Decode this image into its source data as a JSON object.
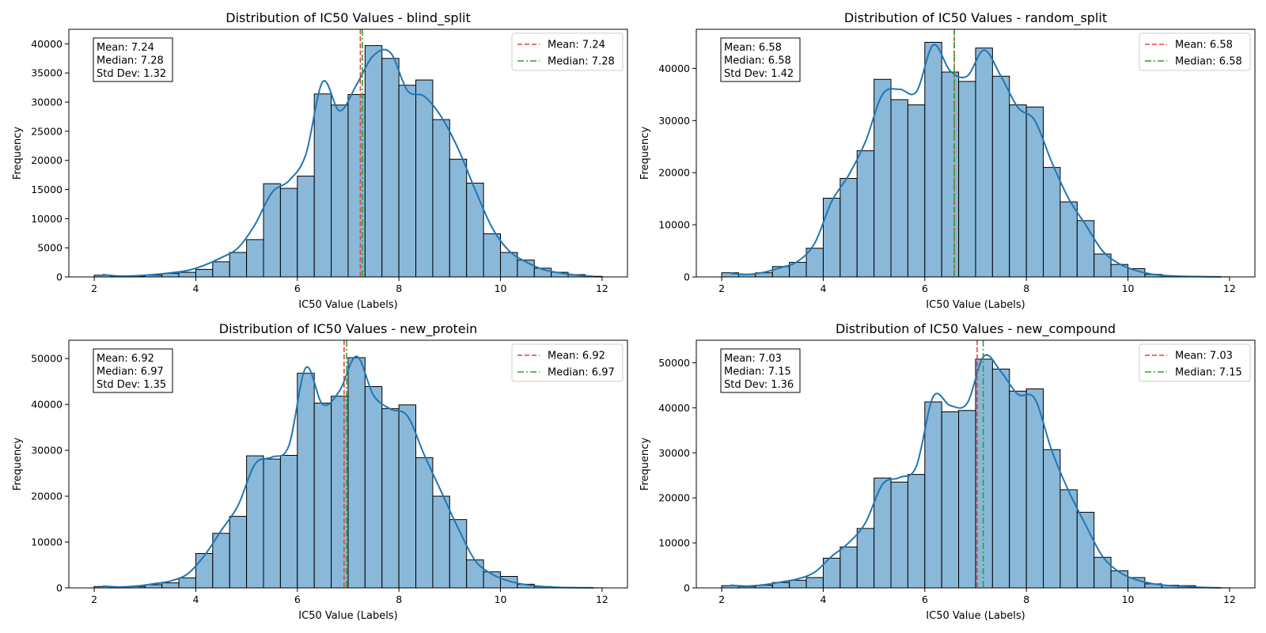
{
  "colors": {
    "bar_fill": "#8ab8d9",
    "bar_edge": "#000000",
    "kde": "#1f77b4",
    "mean_line": "#e8403a",
    "median_line": "#2ca02c"
  },
  "chart_data": [
    {
      "type": "bar",
      "title": "Distribution of IC50 Values - blind_split",
      "xlabel": "IC50 Value (Labels)",
      "ylabel": "Frequency",
      "xlim": [
        1.5,
        12.5
      ],
      "ylim": [
        0,
        42500
      ],
      "xticks": [
        2,
        4,
        6,
        8,
        10,
        12
      ],
      "yticks": [
        0,
        5000,
        10000,
        15000,
        20000,
        25000,
        30000,
        35000,
        40000
      ],
      "bin_start": 2,
      "bin_width": 0.3333,
      "values": [
        300,
        100,
        100,
        300,
        600,
        800,
        1300,
        2600,
        4200,
        6400,
        16000,
        15200,
        17300,
        31400,
        29500,
        31300,
        39700,
        37500,
        32900,
        33800,
        27000,
        20200,
        16100,
        7400,
        4200,
        2900,
        1500,
        800,
        400,
        100
      ],
      "kde": [
        400,
        150,
        200,
        400,
        700,
        1100,
        2000,
        3300,
        5000,
        9000,
        14500,
        16500,
        21000,
        33500,
        28500,
        33000,
        38000,
        38500,
        32000,
        31000,
        27500,
        22000,
        15000,
        8500,
        4500,
        2600,
        1300,
        700,
        300,
        100
      ],
      "grid": false,
      "legend_position": "top-right",
      "mean": 7.24,
      "median": 7.28,
      "stats": [
        "Mean: 7.24",
        "Median: 7.28",
        "Std Dev: 1.32"
      ],
      "legend": [
        "Mean: 7.24",
        "Median: 7.28"
      ]
    },
    {
      "type": "bar",
      "title": "Distribution of IC50 Values - random_split",
      "xlabel": "IC50 Value (Labels)",
      "ylabel": "Frequency",
      "xlim": [
        1.5,
        12.5
      ],
      "ylim": [
        0,
        47500
      ],
      "xticks": [
        2,
        4,
        6,
        8,
        10,
        12
      ],
      "yticks": [
        0,
        10000,
        20000,
        30000,
        40000
      ],
      "bin_start": 2,
      "bin_width": 0.3333,
      "values": [
        800,
        500,
        800,
        2000,
        2800,
        5500,
        15100,
        18900,
        24200,
        37900,
        34000,
        33000,
        45000,
        39300,
        37500,
        43900,
        38500,
        33000,
        32600,
        21000,
        14400,
        10800,
        4400,
        2400,
        1600,
        500,
        200,
        100,
        50,
        20
      ],
      "kde": [
        700,
        500,
        900,
        1800,
        3000,
        6500,
        14500,
        19500,
        26000,
        35000,
        36000,
        35500,
        44500,
        39500,
        38500,
        43500,
        38500,
        32500,
        30000,
        22000,
        15000,
        10000,
        5000,
        2500,
        1200,
        500,
        200,
        100,
        50,
        20
      ],
      "grid": false,
      "legend_position": "top-right",
      "mean": 6.58,
      "median": 6.58,
      "stats": [
        "Mean: 6.58",
        "Median: 6.58",
        "Std Dev: 1.42"
      ],
      "legend": [
        "Mean: 6.58",
        "Median: 6.58"
      ]
    },
    {
      "type": "bar",
      "title": "Distribution of IC50 Values - new_protein",
      "xlabel": "IC50 Value (Labels)",
      "ylabel": "Frequency",
      "xlim": [
        1.5,
        12.5
      ],
      "ylim": [
        0,
        54000
      ],
      "xticks": [
        2,
        4,
        6,
        8,
        10,
        12
      ],
      "yticks": [
        0,
        10000,
        20000,
        30000,
        40000,
        50000
      ],
      "bin_start": 2,
      "bin_width": 0.3333,
      "values": [
        300,
        200,
        300,
        700,
        1100,
        2200,
        7500,
        11900,
        15600,
        28800,
        28100,
        28900,
        46800,
        40300,
        41800,
        50200,
        43900,
        39100,
        39900,
        28400,
        20000,
        14900,
        6100,
        3500,
        2500,
        800,
        300,
        100,
        50,
        20
      ],
      "kde": [
        400,
        200,
        400,
        900,
        1500,
        3000,
        7000,
        12500,
        18000,
        27000,
        28500,
        31000,
        48000,
        40000,
        43000,
        50500,
        42000,
        39000,
        37500,
        29000,
        21000,
        13000,
        6000,
        3000,
        1500,
        700,
        300,
        100,
        50,
        20
      ],
      "grid": false,
      "legend_position": "top-right",
      "mean": 6.92,
      "median": 6.97,
      "stats": [
        "Mean: 6.92",
        "Median: 6.97",
        "Std Dev: 1.35"
      ],
      "legend": [
        "Mean: 6.92",
        "Median: 6.97"
      ]
    },
    {
      "type": "bar",
      "title": "Distribution of IC50 Values - new_compound",
      "xlabel": "IC50 Value (Labels)",
      "ylabel": "Frequency",
      "xlim": [
        1.5,
        12.5
      ],
      "ylim": [
        0,
        55000
      ],
      "xticks": [
        2,
        4,
        6,
        8,
        10,
        12
      ],
      "yticks": [
        0,
        10000,
        20000,
        30000,
        40000,
        50000
      ],
      "bin_start": 2,
      "bin_width": 0.3333,
      "values": [
        500,
        300,
        600,
        1200,
        1700,
        2300,
        6600,
        9100,
        13200,
        24400,
        23500,
        25200,
        41300,
        39100,
        39400,
        50800,
        48600,
        43700,
        44200,
        30700,
        21800,
        16800,
        6800,
        3800,
        2300,
        900,
        600,
        500,
        100,
        20
      ],
      "kde": [
        600,
        400,
        700,
        1300,
        2000,
        3500,
        7000,
        10000,
        14500,
        23000,
        24500,
        27000,
        42500,
        40500,
        41000,
        51500,
        48000,
        43000,
        42000,
        30500,
        21500,
        14000,
        7000,
        3500,
        1800,
        900,
        500,
        300,
        100,
        20
      ],
      "grid": false,
      "legend_position": "top-right",
      "mean": 7.03,
      "median": 7.15,
      "stats": [
        "Mean: 7.03",
        "Median: 7.15",
        "Std Dev: 1.36"
      ],
      "legend": [
        "Mean: 7.03",
        "Median: 7.15"
      ]
    }
  ]
}
